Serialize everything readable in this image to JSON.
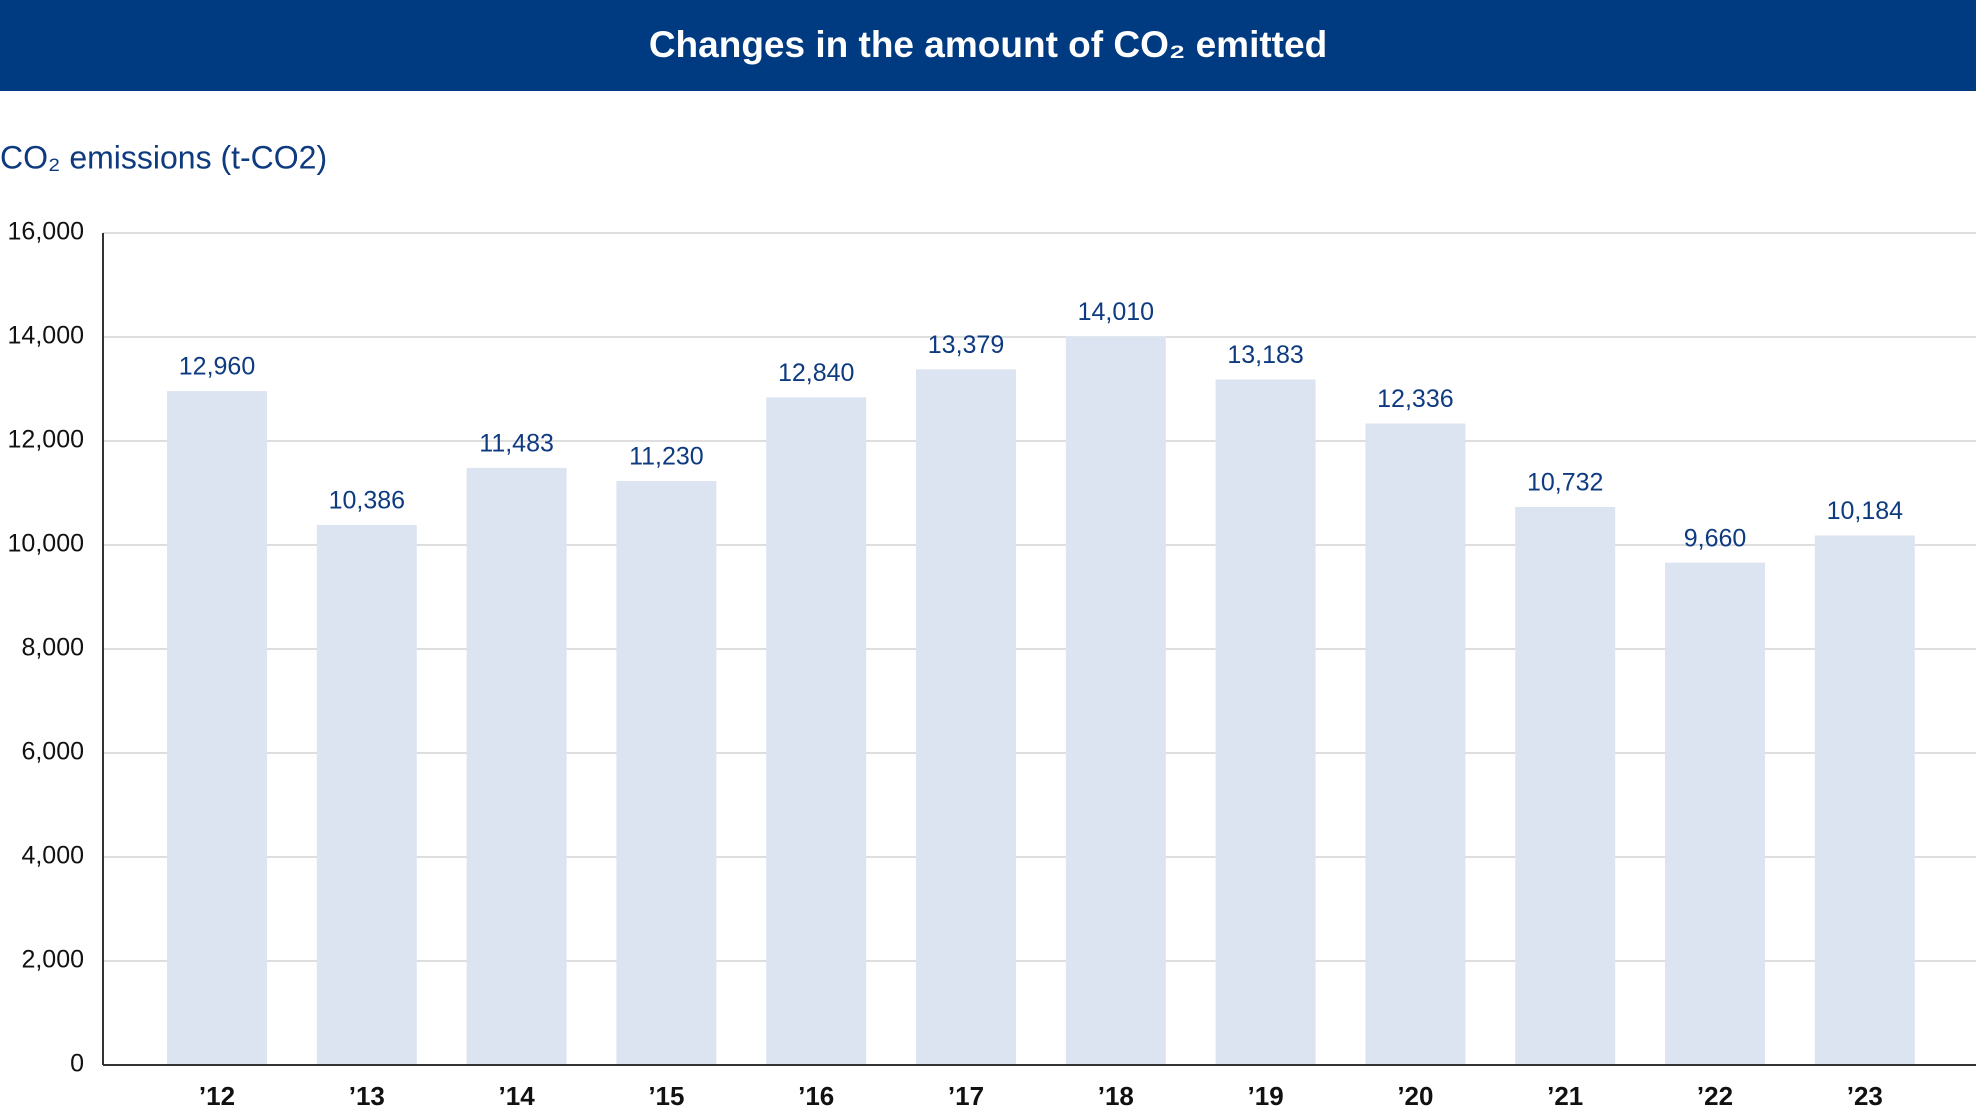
{
  "chart_data": {
    "type": "bar",
    "title": "Changes in the amount of CO₂ emitted",
    "y_label": "CO₂ emissions (t-CO2)",
    "categories": [
      "’12",
      "’13",
      "’14",
      "’15",
      "’16",
      "’17",
      "’18",
      "’19",
      "’20",
      "’21",
      "’22",
      "’23"
    ],
    "values": [
      12960,
      10386,
      11483,
      11230,
      12840,
      13379,
      14010,
      13183,
      12336,
      10732,
      9660,
      10184
    ],
    "value_labels": [
      "12,960",
      "10,386",
      "11,483",
      "11,230",
      "12,840",
      "13,379",
      "14,010",
      "13,183",
      "12,336",
      "10,732",
      "9,660",
      "10,184"
    ],
    "color": "#dde4f1",
    "ylim": [
      0,
      16000
    ],
    "yticks": [
      0,
      {
        "value": 2000,
        "label": "2,000"
      },
      {
        "value": 4000,
        "label": "4,000"
      },
      {
        "value": 6000,
        "label": "6,000"
      },
      {
        "value": 8000,
        "label": "8,000"
      },
      {
        "value": 10000,
        "label": "10,000"
      },
      {
        "value": 12000,
        "label": "12,000"
      },
      {
        "value": 14000,
        "label": "14,000"
      },
      {
        "value": 16000,
        "label": "16,000"
      }
    ],
    "grid": true
  }
}
